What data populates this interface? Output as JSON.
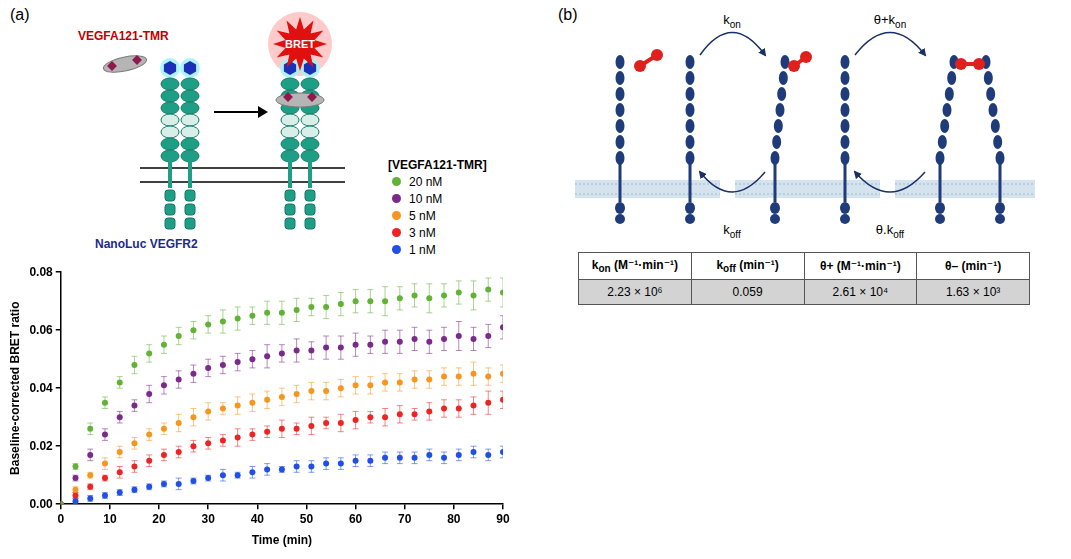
{
  "panel_labels": [
    "(a)",
    "(b)"
  ],
  "schematic": {
    "ligand_label": "VEGFA121-TMR",
    "signal_label": "BRET",
    "receptor_label": "NanoLuc VEGFR2"
  },
  "chart_data": {
    "type": "scatter",
    "legend_title": "[VEGFA121-TMR]",
    "x_label": "Time (min)",
    "y_label": "Baseline-corrected BRET ratio",
    "x": [
      0,
      3,
      6,
      9,
      12,
      15,
      18,
      21,
      24,
      27,
      30,
      33,
      36,
      39,
      42,
      45,
      48,
      51,
      54,
      57,
      60,
      63,
      66,
      69,
      72,
      75,
      78,
      81,
      84,
      87,
      90
    ],
    "series": [
      {
        "name": "20 nM",
        "color": "#62b236",
        "values": [
          0,
          0.013,
          0.026,
          0.035,
          0.042,
          0.048,
          0.052,
          0.055,
          0.058,
          0.06,
          0.062,
          0.063,
          0.064,
          0.065,
          0.066,
          0.066,
          0.067,
          0.068,
          0.068,
          0.069,
          0.07,
          0.07,
          0.07,
          0.071,
          0.072,
          0.071,
          0.072,
          0.073,
          0.072,
          0.074,
          0.073
        ],
        "errors": [
          0,
          0.001,
          0.002,
          0.002,
          0.002,
          0.003,
          0.003,
          0.003,
          0.003,
          0.003,
          0.003,
          0.004,
          0.004,
          0.003,
          0.004,
          0.004,
          0.004,
          0.003,
          0.004,
          0.004,
          0.004,
          0.004,
          0.005,
          0.004,
          0.004,
          0.005,
          0.004,
          0.004,
          0.005,
          0.004,
          0.005
        ]
      },
      {
        "name": "10 nM",
        "color": "#7b2a8c",
        "values": [
          0,
          0.009,
          0.017,
          0.024,
          0.03,
          0.034,
          0.038,
          0.041,
          0.043,
          0.045,
          0.047,
          0.048,
          0.049,
          0.05,
          0.051,
          0.052,
          0.053,
          0.053,
          0.054,
          0.054,
          0.055,
          0.055,
          0.056,
          0.056,
          0.057,
          0.056,
          0.057,
          0.058,
          0.057,
          0.058,
          0.061
        ],
        "errors": [
          0,
          0.001,
          0.002,
          0.002,
          0.002,
          0.002,
          0.003,
          0.003,
          0.003,
          0.003,
          0.003,
          0.003,
          0.003,
          0.003,
          0.004,
          0.003,
          0.004,
          0.003,
          0.004,
          0.004,
          0.004,
          0.003,
          0.004,
          0.004,
          0.004,
          0.004,
          0.004,
          0.005,
          0.004,
          0.004,
          0.004
        ]
      },
      {
        "name": "5 nM",
        "color": "#f5961e",
        "values": [
          0,
          0.005,
          0.01,
          0.014,
          0.018,
          0.021,
          0.024,
          0.026,
          0.028,
          0.03,
          0.032,
          0.033,
          0.034,
          0.035,
          0.036,
          0.037,
          0.038,
          0.039,
          0.039,
          0.04,
          0.041,
          0.041,
          0.042,
          0.042,
          0.043,
          0.043,
          0.044,
          0.044,
          0.045,
          0.044,
          0.045
        ],
        "errors": [
          0,
          0.001,
          0.001,
          0.002,
          0.002,
          0.002,
          0.002,
          0.002,
          0.003,
          0.003,
          0.003,
          0.002,
          0.003,
          0.003,
          0.003,
          0.003,
          0.003,
          0.003,
          0.003,
          0.003,
          0.003,
          0.003,
          0.003,
          0.003,
          0.003,
          0.003,
          0.003,
          0.003,
          0.004,
          0.003,
          0.003
        ]
      },
      {
        "name": "3 nM",
        "color": "#ec2424",
        "values": [
          0,
          0.003,
          0.006,
          0.009,
          0.011,
          0.013,
          0.015,
          0.017,
          0.018,
          0.02,
          0.021,
          0.022,
          0.023,
          0.024,
          0.025,
          0.026,
          0.026,
          0.027,
          0.028,
          0.028,
          0.029,
          0.03,
          0.03,
          0.031,
          0.031,
          0.032,
          0.033,
          0.033,
          0.034,
          0.035,
          0.036
        ],
        "errors": [
          0,
          0.001,
          0.001,
          0.001,
          0.002,
          0.002,
          0.002,
          0.002,
          0.002,
          0.002,
          0.002,
          0.002,
          0.003,
          0.002,
          0.002,
          0.003,
          0.002,
          0.003,
          0.002,
          0.003,
          0.003,
          0.002,
          0.003,
          0.003,
          0.002,
          0.003,
          0.003,
          0.003,
          0.003,
          0.004,
          0.003
        ]
      },
      {
        "name": "1 nM",
        "color": "#1f4fe6",
        "values": [
          0,
          0.001,
          0.002,
          0.003,
          0.004,
          0.005,
          0.006,
          0.007,
          0.007,
          0.008,
          0.009,
          0.01,
          0.01,
          0.011,
          0.012,
          0.012,
          0.013,
          0.013,
          0.014,
          0.014,
          0.015,
          0.015,
          0.016,
          0.016,
          0.016,
          0.017,
          0.016,
          0.017,
          0.018,
          0.017,
          0.018
        ],
        "errors": [
          0,
          0.001,
          0.001,
          0.001,
          0.001,
          0.001,
          0.001,
          0.001,
          0.002,
          0.001,
          0.001,
          0.002,
          0.001,
          0.002,
          0.002,
          0.001,
          0.002,
          0.002,
          0.002,
          0.002,
          0.002,
          0.002,
          0.002,
          0.002,
          0.002,
          0.002,
          0.002,
          0.002,
          0.002,
          0.002,
          0.002
        ]
      }
    ],
    "xlim": [
      0,
      90
    ],
    "xticks": [
      0,
      10,
      20,
      30,
      40,
      50,
      60,
      70,
      80,
      90
    ],
    "ylim": [
      0,
      0.08
    ],
    "yticks": [
      {
        "value": 0,
        "label": "0.00"
      },
      {
        "value": 0.02,
        "label": "0.02"
      },
      {
        "value": 0.04,
        "label": "0.04"
      },
      {
        "value": 0.06,
        "label": "0.06"
      },
      {
        "value": 0.08,
        "label": "0.08"
      }
    ],
    "grid": false,
    "legend": "top right",
    "marker": "circle"
  },
  "diagram": {
    "forward": [
      [
        {
          "text": "k"
        },
        {
          "text": "on",
          "sub": true
        }
      ],
      [
        {
          "text": "θ+k"
        },
        {
          "text": "on",
          "sub": true
        }
      ]
    ],
    "reverse": [
      [
        {
          "text": "k"
        },
        {
          "text": "off",
          "sub": true
        }
      ],
      [
        {
          "text": "θ.k"
        },
        {
          "text": "off",
          "sub": true
        }
      ]
    ]
  },
  "table": {
    "header": [
      [
        {
          "text": "k"
        },
        {
          "text": "on",
          "sub": true
        },
        {
          "text": " (M⁻¹·min⁻¹)"
        }
      ],
      [
        {
          "text": "k"
        },
        {
          "text": "off",
          "sub": true
        },
        {
          "text": " (min⁻¹)"
        }
      ],
      [
        {
          "text": "θ+ (M⁻¹·min⁻¹)"
        }
      ],
      [
        {
          "text": "θ– (min⁻¹)"
        }
      ]
    ],
    "rows": [
      [
        "2.23 × 10⁶",
        "0.059",
        "2.61 × 10⁴",
        "1.63 × 10³"
      ]
    ]
  }
}
